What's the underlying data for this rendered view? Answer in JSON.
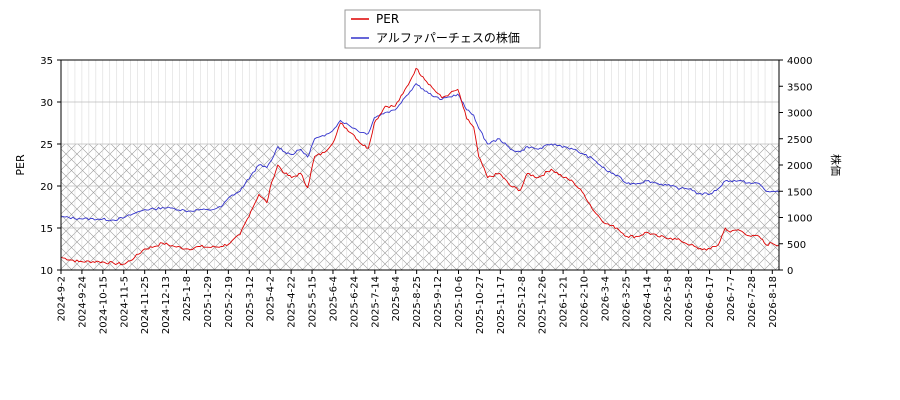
{
  "chart_data": {
    "type": "line",
    "legend": {
      "placement": "top-center",
      "entries": [
        "PER",
        "アルファパーチェスの株価"
      ]
    },
    "grid": true,
    "hatched_band": {
      "axis": "left",
      "from": 10,
      "to": 25
    },
    "x_tick_labels": [
      "2024-9-2",
      "2024-9-24",
      "2024-10-15",
      "2024-11-5",
      "2024-11-25",
      "2024-12-13",
      "2025-1-8",
      "2025-1-29",
      "2025-2-19",
      "2025-3-12",
      "2025-4-2",
      "2025-4-22",
      "2025-5-15",
      "2025-6-4",
      "2025-6-24",
      "2025-7-14",
      "2025-8-4",
      "2025-8-25",
      "2025-9-12",
      "2025-10-6",
      "2025-10-27",
      "2025-11-17",
      "2025-12-8",
      "2025-12-26",
      "2026-1-21",
      "2026-2-10",
      "2026-3-4",
      "2026-3-25",
      "2026-4-14",
      "2026-5-8",
      "2026-5-28",
      "2026-6-17",
      "2026-7-7",
      "2026-7-28",
      "2026-8-18"
    ],
    "x_range": [
      "2024-09-02",
      "2026-08-25"
    ],
    "left_axis": {
      "label": "PER",
      "range": [
        10,
        35
      ],
      "ticks": [
        10,
        15,
        20,
        25,
        30,
        35
      ]
    },
    "right_axis": {
      "label": "株価",
      "range": [
        0,
        4000
      ],
      "ticks": [
        0,
        500,
        1000,
        1500,
        2000,
        2500,
        3000,
        3500,
        4000
      ]
    },
    "series": [
      {
        "name": "PER",
        "axis": "left",
        "color": "#dd0000",
        "points": [
          [
            "2024-09-02",
            11.5
          ],
          [
            "2024-09-20",
            11.0
          ],
          [
            "2024-10-10",
            11.0
          ],
          [
            "2024-10-25",
            10.8
          ],
          [
            "2024-11-05",
            10.7
          ],
          [
            "2024-11-15",
            11.5
          ],
          [
            "2024-11-25",
            12.5
          ],
          [
            "2024-12-05",
            12.8
          ],
          [
            "2024-12-13",
            13.2
          ],
          [
            "2024-12-25",
            12.8
          ],
          [
            "2025-01-08",
            12.5
          ],
          [
            "2025-01-20",
            12.8
          ],
          [
            "2025-01-29",
            12.7
          ],
          [
            "2025-02-10",
            12.8
          ],
          [
            "2025-02-19",
            13.2
          ],
          [
            "2025-03-01",
            14.2
          ],
          [
            "2025-03-12",
            17.0
          ],
          [
            "2025-03-20",
            19.0
          ],
          [
            "2025-03-28",
            18.0
          ],
          [
            "2025-04-02",
            20.5
          ],
          [
            "2025-04-08",
            22.5
          ],
          [
            "2025-04-15",
            21.5
          ],
          [
            "2025-04-22",
            21.0
          ],
          [
            "2025-05-01",
            21.5
          ],
          [
            "2025-05-08",
            19.8
          ],
          [
            "2025-05-15",
            23.5
          ],
          [
            "2025-05-25",
            24.0
          ],
          [
            "2025-06-04",
            25.5
          ],
          [
            "2025-06-10",
            27.5
          ],
          [
            "2025-06-24",
            26.0
          ],
          [
            "2025-07-01",
            25.0
          ],
          [
            "2025-07-08",
            24.5
          ],
          [
            "2025-07-14",
            27.5
          ],
          [
            "2025-07-25",
            29.5
          ],
          [
            "2025-08-04",
            29.5
          ],
          [
            "2025-08-12",
            31.0
          ],
          [
            "2025-08-19",
            32.5
          ],
          [
            "2025-08-25",
            34.0
          ],
          [
            "2025-09-01",
            33.0
          ],
          [
            "2025-09-12",
            31.5
          ],
          [
            "2025-09-20",
            30.5
          ],
          [
            "2025-09-28",
            31.0
          ],
          [
            "2025-10-06",
            31.5
          ],
          [
            "2025-10-15",
            28.0
          ],
          [
            "2025-10-22",
            27.0
          ],
          [
            "2025-10-27",
            23.5
          ],
          [
            "2025-11-05",
            21.0
          ],
          [
            "2025-11-17",
            21.5
          ],
          [
            "2025-11-28",
            20.0
          ],
          [
            "2025-12-08",
            19.5
          ],
          [
            "2025-12-15",
            21.5
          ],
          [
            "2025-12-26",
            21.0
          ],
          [
            "2026-01-08",
            22.0
          ],
          [
            "2026-01-21",
            21.0
          ],
          [
            "2026-01-30",
            20.5
          ],
          [
            "2026-02-10",
            19.0
          ],
          [
            "2026-02-20",
            17.0
          ],
          [
            "2026-03-04",
            15.5
          ],
          [
            "2026-03-15",
            15.0
          ],
          [
            "2026-03-25",
            14.0
          ],
          [
            "2026-04-05",
            14.0
          ],
          [
            "2026-04-14",
            14.5
          ],
          [
            "2026-04-25",
            14.0
          ],
          [
            "2026-05-08",
            13.8
          ],
          [
            "2026-05-18",
            13.5
          ],
          [
            "2026-05-28",
            13.0
          ],
          [
            "2026-06-05",
            12.5
          ],
          [
            "2026-06-17",
            12.5
          ],
          [
            "2026-06-25",
            13.0
          ],
          [
            "2026-07-02",
            15.0
          ],
          [
            "2026-07-07",
            14.5
          ],
          [
            "2026-07-15",
            14.8
          ],
          [
            "2026-07-28",
            14.0
          ],
          [
            "2026-08-05",
            14.0
          ],
          [
            "2026-08-12",
            13.0
          ],
          [
            "2026-08-18",
            13.2
          ],
          [
            "2026-08-25",
            12.9
          ]
        ]
      },
      {
        "name": "アルファパーチェスの株価",
        "axis": "right",
        "color": "#3333cc",
        "points": [
          [
            "2024-09-02",
            1010
          ],
          [
            "2024-09-20",
            980
          ],
          [
            "2024-10-10",
            970
          ],
          [
            "2024-10-25",
            950
          ],
          [
            "2024-11-05",
            1000
          ],
          [
            "2024-11-15",
            1080
          ],
          [
            "2024-11-25",
            1150
          ],
          [
            "2024-12-05",
            1160
          ],
          [
            "2024-12-13",
            1190
          ],
          [
            "2024-12-25",
            1170
          ],
          [
            "2025-01-08",
            1120
          ],
          [
            "2025-01-20",
            1150
          ],
          [
            "2025-01-29",
            1140
          ],
          [
            "2025-02-10",
            1200
          ],
          [
            "2025-02-19",
            1400
          ],
          [
            "2025-03-01",
            1500
          ],
          [
            "2025-03-12",
            1800
          ],
          [
            "2025-03-20",
            2000
          ],
          [
            "2025-03-28",
            1950
          ],
          [
            "2025-04-02",
            2100
          ],
          [
            "2025-04-08",
            2350
          ],
          [
            "2025-04-15",
            2250
          ],
          [
            "2025-04-22",
            2200
          ],
          [
            "2025-05-01",
            2300
          ],
          [
            "2025-05-08",
            2150
          ],
          [
            "2025-05-15",
            2500
          ],
          [
            "2025-05-25",
            2550
          ],
          [
            "2025-06-04",
            2700
          ],
          [
            "2025-06-10",
            2850
          ],
          [
            "2025-06-24",
            2700
          ],
          [
            "2025-07-01",
            2620
          ],
          [
            "2025-07-08",
            2600
          ],
          [
            "2025-07-14",
            2900
          ],
          [
            "2025-07-25",
            3000
          ],
          [
            "2025-08-04",
            3050
          ],
          [
            "2025-08-12",
            3250
          ],
          [
            "2025-08-19",
            3400
          ],
          [
            "2025-08-25",
            3550
          ],
          [
            "2025-09-01",
            3450
          ],
          [
            "2025-09-12",
            3300
          ],
          [
            "2025-09-20",
            3250
          ],
          [
            "2025-09-28",
            3300
          ],
          [
            "2025-10-06",
            3350
          ],
          [
            "2025-10-15",
            3050
          ],
          [
            "2025-10-22",
            2950
          ],
          [
            "2025-10-27",
            2700
          ],
          [
            "2025-11-05",
            2400
          ],
          [
            "2025-11-17",
            2500
          ],
          [
            "2025-11-28",
            2300
          ],
          [
            "2025-12-08",
            2250
          ],
          [
            "2025-12-15",
            2350
          ],
          [
            "2025-12-26",
            2300
          ],
          [
            "2026-01-08",
            2400
          ],
          [
            "2026-01-21",
            2350
          ],
          [
            "2026-01-30",
            2300
          ],
          [
            "2026-02-10",
            2200
          ],
          [
            "2026-02-20",
            2100
          ],
          [
            "2026-03-04",
            1900
          ],
          [
            "2026-03-15",
            1800
          ],
          [
            "2026-03-25",
            1650
          ],
          [
            "2026-04-05",
            1650
          ],
          [
            "2026-04-14",
            1700
          ],
          [
            "2026-04-25",
            1650
          ],
          [
            "2026-05-08",
            1600
          ],
          [
            "2026-05-18",
            1550
          ],
          [
            "2026-05-28",
            1550
          ],
          [
            "2026-06-05",
            1450
          ],
          [
            "2026-06-17",
            1450
          ],
          [
            "2026-06-25",
            1550
          ],
          [
            "2026-07-02",
            1700
          ],
          [
            "2026-07-07",
            1700
          ],
          [
            "2026-07-15",
            1700
          ],
          [
            "2026-07-28",
            1650
          ],
          [
            "2026-08-05",
            1650
          ],
          [
            "2026-08-12",
            1500
          ],
          [
            "2026-08-18",
            1500
          ],
          [
            "2026-08-25",
            1480
          ]
        ]
      }
    ]
  }
}
